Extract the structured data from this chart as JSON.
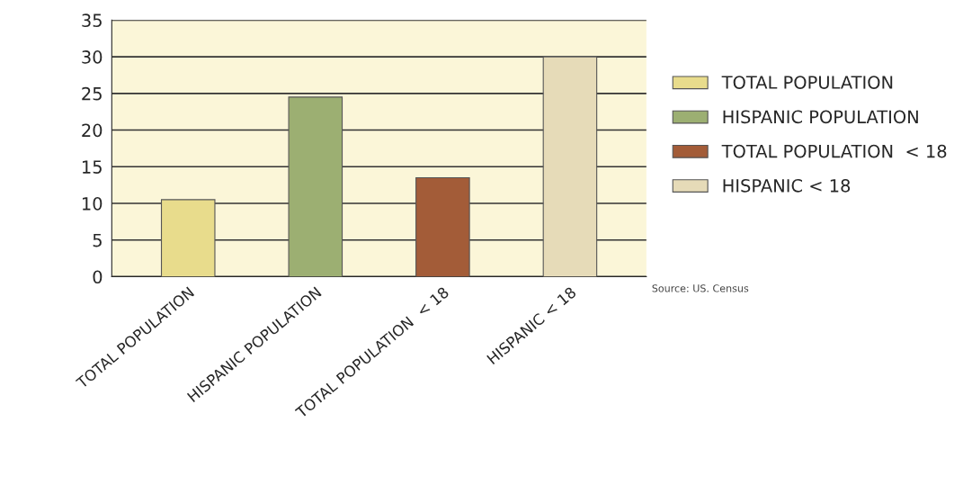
{
  "chart_data": {
    "type": "bar",
    "categories": [
      "TOTAL POPULATION",
      "HISPANIC POPULATION",
      "TOTAL POPULATION  < 18",
      "HISPANIC < 18"
    ],
    "series": [
      {
        "name": "TOTAL POPULATION",
        "color": "#e8dc8c",
        "values": [
          10.5,
          null,
          null,
          null
        ]
      },
      {
        "name": "HISPANIC POPULATION",
        "color": "#9caf72",
        "values": [
          null,
          24.5,
          null,
          null
        ]
      },
      {
        "name": "TOTAL POPULATION  < 18",
        "color": "#a35c38",
        "values": [
          null,
          null,
          13.5,
          null
        ]
      },
      {
        "name": "HISPANIC < 18",
        "color": "#e6dbb8",
        "values": [
          null,
          null,
          null,
          30
        ]
      }
    ],
    "ylim": [
      0,
      35
    ],
    "yticks": [
      0,
      5,
      10,
      15,
      20,
      25,
      30,
      35
    ],
    "grid": "y",
    "legend": "right",
    "annotations": [
      "Source: US. Census"
    ]
  }
}
